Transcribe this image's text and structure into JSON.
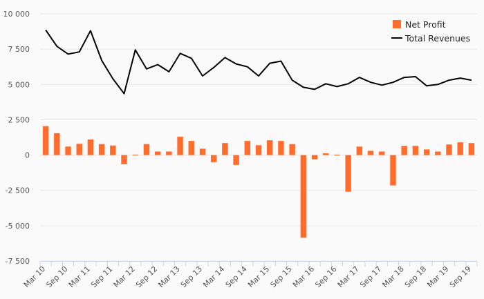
{
  "chart_data": {
    "type": "bar+line",
    "title": "",
    "xlabel": "",
    "ylabel": "",
    "ylim": [
      -7500,
      10000
    ],
    "yticks": [
      10000,
      7500,
      5000,
      2500,
      0,
      -2500,
      -5000,
      -7500
    ],
    "ytick_labels": [
      "10 000",
      "7 500",
      "5 000",
      "2 500",
      "0",
      "-2 500",
      "-5 000",
      "-7 500"
    ],
    "grid": true,
    "legend_position": "top-right",
    "colors": {
      "bar": "#ff6d2e",
      "line": "#000000",
      "grid": "#e6e6e6",
      "axis": "#ccd6eb"
    },
    "x_labels": [
      "Mar 10",
      "Sep 10",
      "Mar 11",
      "Sep 11",
      "Mar 12",
      "Sep 12",
      "Mar 13",
      "Sep 13",
      "Mar 14",
      "Sep 14",
      "Mar 15",
      "Sep 15",
      "Mar 16",
      "Sep 16",
      "Mar 17",
      "Sep 17",
      "Mar 18",
      "Sep 18",
      "Mar 19",
      "Sep 19"
    ],
    "series": [
      {
        "name": "Net Profit",
        "type": "bar",
        "values": [
          2050,
          1550,
          600,
          800,
          1100,
          780,
          680,
          -650,
          30,
          780,
          250,
          250,
          1300,
          1000,
          450,
          -500,
          850,
          -700,
          1000,
          700,
          1050,
          1000,
          780,
          -5850,
          -300,
          130,
          30,
          -2600,
          600,
          300,
          250,
          -2150,
          650,
          650,
          400,
          250,
          750,
          900,
          850
        ]
      },
      {
        "name": "Total Revenues",
        "type": "line",
        "values": [
          8850,
          7700,
          7150,
          7300,
          8800,
          6700,
          5400,
          4350,
          7450,
          6100,
          6400,
          5900,
          7200,
          6850,
          5600,
          6200,
          6900,
          6450,
          6250,
          5600,
          6500,
          6650,
          5300,
          4800,
          4650,
          5050,
          4850,
          5050,
          5500,
          5150,
          4950,
          5150,
          5500,
          5550,
          4900,
          5000,
          5300,
          5450,
          5300
        ]
      }
    ]
  }
}
